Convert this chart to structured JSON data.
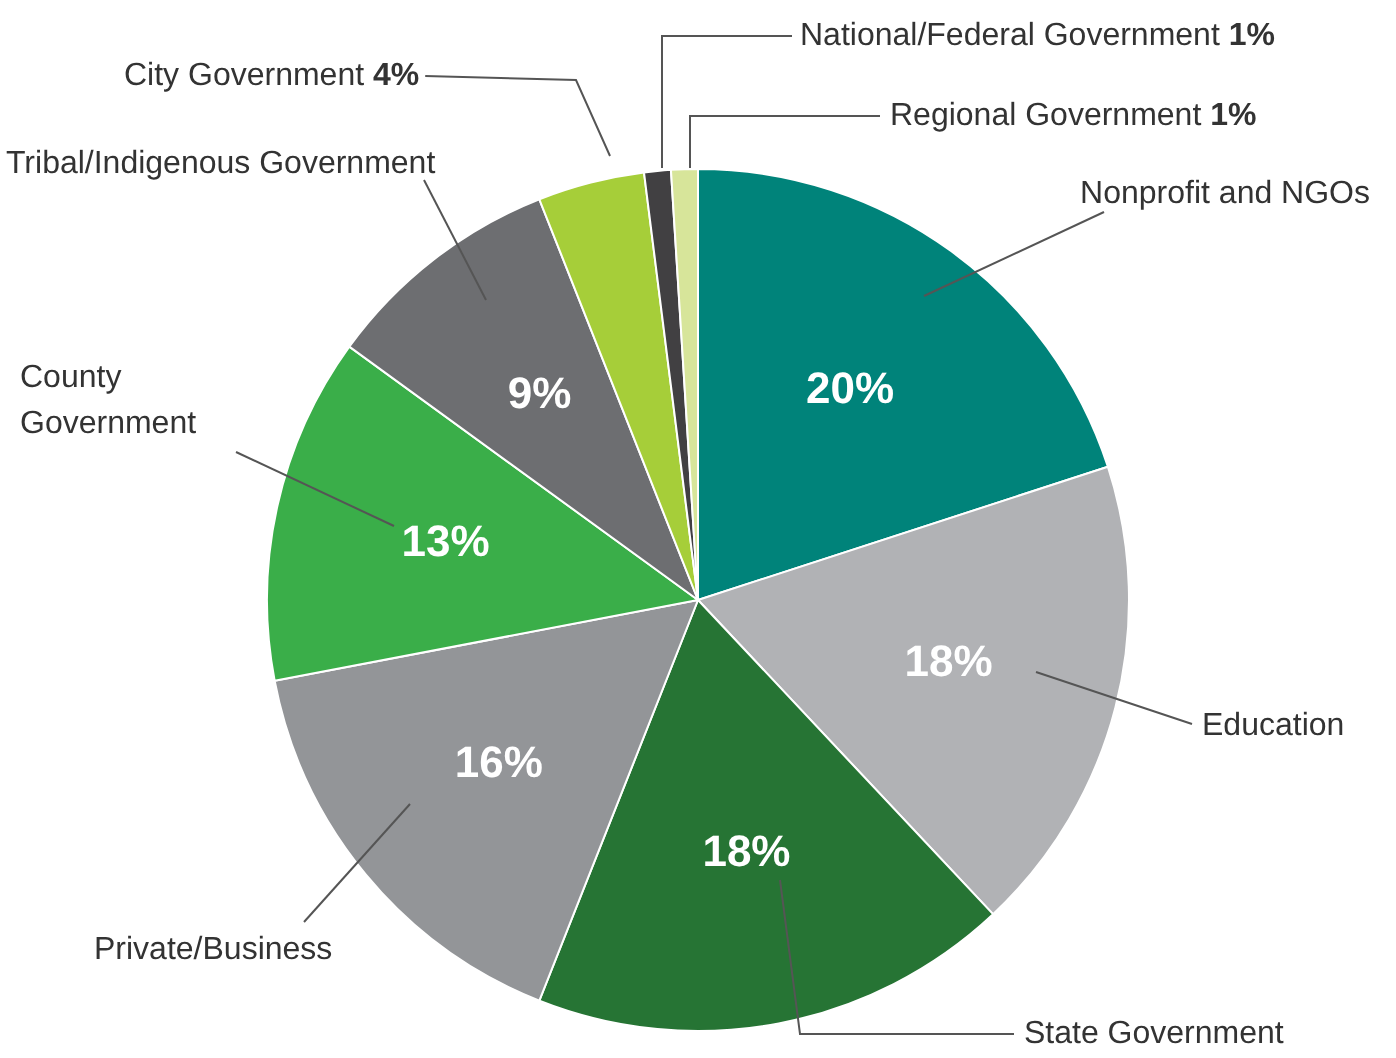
{
  "chart_data": {
    "type": "pie",
    "categories": [
      "Nonprofit and NGOs",
      "Education",
      "State Government",
      "Private/Business",
      "County Government",
      "Tribal/Indigenous Government",
      "City Government",
      "National/Federal Government",
      "Regional Government"
    ],
    "values": [
      20,
      18,
      18,
      16,
      13,
      9,
      4,
      1,
      1
    ],
    "value_labels": [
      "20%",
      "18%",
      "18%",
      "16%",
      "13%",
      "9%",
      "4%",
      "1%",
      "1%"
    ],
    "colors": [
      "#00837a",
      "#b1b2b5",
      "#267434",
      "#939598",
      "#3aae49",
      "#6d6e71",
      "#a6ce39",
      "#414042",
      "#d7e59a"
    ],
    "legend": false
  }
}
